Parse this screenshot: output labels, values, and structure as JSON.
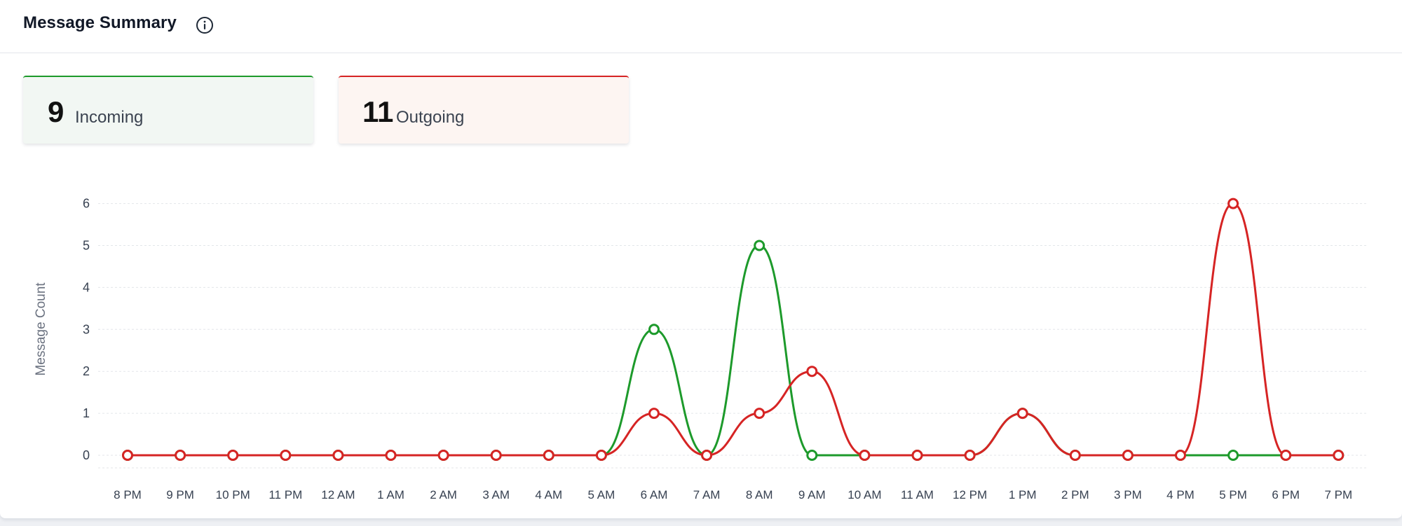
{
  "header": {
    "title": "Message Summary",
    "info_icon": "info-circle-icon"
  },
  "stats": {
    "incoming": {
      "count": "9",
      "label": "Incoming",
      "color": "#1d9a2b"
    },
    "outgoing": {
      "count": "11",
      "label": "Outgoing",
      "color": "#d62424"
    }
  },
  "chart_data": {
    "type": "line",
    "categories": [
      "8 PM",
      "9 PM",
      "10 PM",
      "11 PM",
      "12 AM",
      "1 AM",
      "2 AM",
      "3 AM",
      "4 AM",
      "5 AM",
      "6 AM",
      "7 AM",
      "8 AM",
      "9 AM",
      "10 AM",
      "11 AM",
      "12 PM",
      "1 PM",
      "2 PM",
      "3 PM",
      "4 PM",
      "5 PM",
      "6 PM",
      "7 PM"
    ],
    "series": [
      {
        "values": [
          0,
          0,
          0,
          0,
          0,
          0,
          0,
          0,
          0,
          0,
          3,
          0,
          5,
          0,
          0,
          0,
          0,
          1,
          0,
          0,
          0,
          0,
          0,
          0
        ],
        "color": "#1d9a2b"
      },
      {
        "values": [
          0,
          0,
          0,
          0,
          0,
          0,
          0,
          0,
          0,
          0,
          1,
          0,
          1,
          2,
          0,
          0,
          0,
          1,
          0,
          0,
          0,
          6,
          0,
          0
        ],
        "color": "#d62424"
      }
    ],
    "ylabel": "Message Count",
    "xlabel": "",
    "yticks": [
      0,
      1,
      2,
      3,
      4,
      5,
      6
    ],
    "ylim": [
      0,
      6
    ],
    "grid": true,
    "smooth": true
  }
}
